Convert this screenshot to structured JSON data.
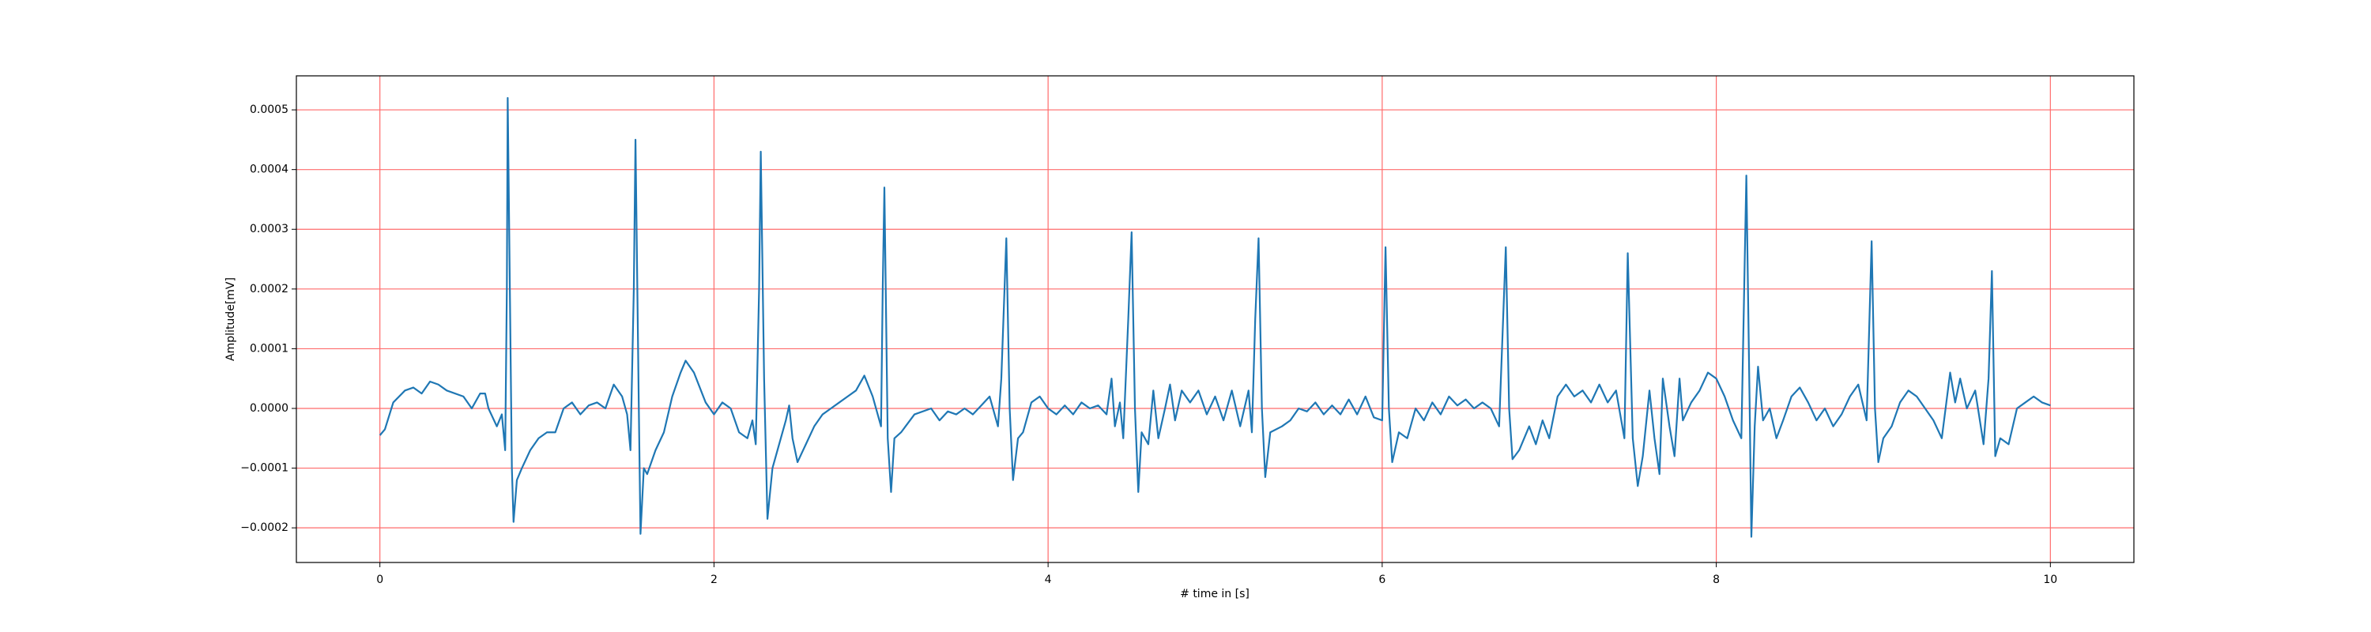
{
  "chart_data": {
    "type": "line",
    "xlabel": "# time in [s]",
    "ylabel": "Amplitude[mV]",
    "x": [
      0,
      0.03,
      0.08,
      0.15,
      0.2,
      0.25,
      0.3,
      0.35,
      0.4,
      0.5,
      0.55,
      0.6,
      0.63,
      0.65,
      0.7,
      0.73,
      0.75,
      0.76,
      0.765,
      0.78,
      0.79,
      0.8,
      0.82,
      0.85,
      0.9,
      0.95,
      1.0,
      1.05,
      1.1,
      1.15,
      1.2,
      1.25,
      1.3,
      1.35,
      1.4,
      1.45,
      1.48,
      1.5,
      1.52,
      1.53,
      1.55,
      1.56,
      1.58,
      1.6,
      1.65,
      1.7,
      1.75,
      1.8,
      1.83,
      1.88,
      1.95,
      2.0,
      2.05,
      2.1,
      2.15,
      2.2,
      2.23,
      2.25,
      2.27,
      2.28,
      2.3,
      2.32,
      2.35,
      2.4,
      2.43,
      2.45,
      2.47,
      2.5,
      2.55,
      2.6,
      2.65,
      2.7,
      2.75,
      2.8,
      2.85,
      2.9,
      2.95,
      3.0,
      3.01,
      3.02,
      3.04,
      3.06,
      3.08,
      3.12,
      3.2,
      3.3,
      3.35,
      3.4,
      3.45,
      3.5,
      3.55,
      3.6,
      3.65,
      3.7,
      3.72,
      3.75,
      3.77,
      3.79,
      3.82,
      3.85,
      3.9,
      3.95,
      4.0,
      4.05,
      4.1,
      4.15,
      4.2,
      4.25,
      4.3,
      4.35,
      4.38,
      4.4,
      4.43,
      4.45,
      4.48,
      4.5,
      4.52,
      4.54,
      4.56,
      4.6,
      4.63,
      4.66,
      4.7,
      4.73,
      4.76,
      4.8,
      4.85,
      4.9,
      4.95,
      5.0,
      5.05,
      5.1,
      5.15,
      5.2,
      5.22,
      5.24,
      5.26,
      5.28,
      5.3,
      5.33,
      5.4,
      5.45,
      5.5,
      5.55,
      5.6,
      5.65,
      5.7,
      5.75,
      5.8,
      5.85,
      5.9,
      5.95,
      6.0,
      6.02,
      6.04,
      6.06,
      6.1,
      6.15,
      6.2,
      6.25,
      6.3,
      6.35,
      6.4,
      6.45,
      6.5,
      6.55,
      6.6,
      6.65,
      6.7,
      6.74,
      6.76,
      6.78,
      6.82,
      6.88,
      6.92,
      6.96,
      7.0,
      7.05,
      7.1,
      7.15,
      7.2,
      7.25,
      7.3,
      7.35,
      7.4,
      7.45,
      7.47,
      7.5,
      7.53,
      7.56,
      7.6,
      7.63,
      7.66,
      7.68,
      7.72,
      7.75,
      7.78,
      7.8,
      7.85,
      7.9,
      7.95,
      8.0,
      8.05,
      8.1,
      8.15,
      8.18,
      8.2,
      8.21,
      8.23,
      8.25,
      8.28,
      8.32,
      8.36,
      8.4,
      8.45,
      8.5,
      8.55,
      8.6,
      8.65,
      8.7,
      8.75,
      8.8,
      8.85,
      8.9,
      8.93,
      8.95,
      8.97,
      9.0,
      9.05,
      9.1,
      9.15,
      9.2,
      9.25,
      9.3,
      9.35,
      9.4,
      9.43,
      9.46,
      9.5,
      9.55,
      9.6,
      9.63,
      9.65,
      9.67,
      9.7,
      9.75,
      9.8,
      9.85,
      9.9,
      9.95,
      10.0
    ],
    "series": [
      {
        "color": "#1f77b4",
        "values": [
          -4.5e-05,
          -3.5e-05,
          1e-05,
          3e-05,
          3.5e-05,
          2.5e-05,
          4.5e-05,
          4e-05,
          3e-05,
          2e-05,
          0,
          2.5e-05,
          2.5e-05,
          0,
          -3e-05,
          -1e-05,
          -7e-05,
          0.0002,
          0.00052,
          0.00015,
          -0.0001,
          -0.00019,
          -0.00012,
          -0.0001,
          -7e-05,
          -5e-05,
          -4e-05,
          -4e-05,
          0,
          1e-05,
          -1e-05,
          5e-06,
          1e-05,
          0,
          4e-05,
          2e-05,
          -1e-05,
          -7e-05,
          0.0002,
          0.00045,
          0,
          -0.00021,
          -0.0001,
          -0.00011,
          -7e-05,
          -4e-05,
          2e-05,
          6e-05,
          8e-05,
          6e-05,
          1e-05,
          -1e-05,
          1e-05,
          0,
          -4e-05,
          -5e-05,
          -2e-05,
          -6e-05,
          0.0002,
          0.00043,
          5e-05,
          -0.000185,
          -0.0001,
          -5e-05,
          -2e-05,
          5e-06,
          -5e-05,
          -9e-05,
          -6e-05,
          -3e-05,
          -1e-05,
          0,
          1e-05,
          2e-05,
          3e-05,
          5.5e-05,
          2e-05,
          -3e-05,
          0.0002,
          0.00037,
          -5e-05,
          -0.00014,
          -5e-05,
          -4e-05,
          -1e-05,
          0,
          -2e-05,
          -5e-06,
          -1e-05,
          0,
          -1e-05,
          5e-06,
          2e-05,
          -3e-05,
          5e-05,
          0.000285,
          0,
          -0.00012,
          -5e-05,
          -4e-05,
          1e-05,
          2e-05,
          0,
          -1e-05,
          5e-06,
          -1e-05,
          1e-05,
          0,
          5e-06,
          -1e-05,
          5e-05,
          -3e-05,
          1e-05,
          -5e-05,
          0.00015,
          0.000295,
          0,
          -0.00014,
          -4e-05,
          -6e-05,
          3e-05,
          -5e-05,
          0,
          4e-05,
          -2e-05,
          3e-05,
          1e-05,
          3e-05,
          -1e-05,
          2e-05,
          -2e-05,
          3e-05,
          -3e-05,
          3e-05,
          -4e-05,
          0.00015,
          0.000285,
          0,
          -0.000115,
          -4e-05,
          -3e-05,
          -2e-05,
          0,
          -5e-06,
          1e-05,
          -1e-05,
          5e-06,
          -1e-05,
          1.5e-05,
          -1e-05,
          2e-05,
          -1.5e-05,
          -2e-05,
          0.00027,
          0,
          -9e-05,
          -4e-05,
          -5e-05,
          0,
          -2e-05,
          1e-05,
          -1e-05,
          2e-05,
          5e-06,
          1.5e-05,
          0,
          1e-05,
          0,
          -3e-05,
          0.00027,
          0,
          -8.5e-05,
          -7e-05,
          -3e-05,
          -6e-05,
          -2e-05,
          -5e-05,
          2e-05,
          4e-05,
          2e-05,
          3e-05,
          1e-05,
          4e-05,
          1e-05,
          3e-05,
          -5e-05,
          0.00026,
          -5e-05,
          -0.00013,
          -8e-05,
          3e-05,
          -5e-05,
          -0.00011,
          5e-05,
          -3e-05,
          -8e-05,
          5e-05,
          -2e-05,
          1e-05,
          3e-05,
          6e-05,
          5e-05,
          2e-05,
          -2e-05,
          -5e-05,
          0.00039,
          0,
          -0.000215,
          -3e-05,
          7e-05,
          -2e-05,
          0,
          -5e-05,
          -2e-05,
          2e-05,
          3.5e-05,
          1e-05,
          -2e-05,
          0,
          -3e-05,
          -1e-05,
          2e-05,
          4e-05,
          -2e-05,
          0.00028,
          0,
          -9e-05,
          -5e-05,
          -3e-05,
          1e-05,
          3e-05,
          2e-05,
          0,
          -2e-05,
          -5e-05,
          6e-05,
          1e-05,
          5e-05,
          0,
          3e-05,
          -6e-05,
          5e-05,
          0.00023,
          -8e-05,
          -5e-05,
          -6e-05,
          0,
          1e-05,
          2e-05,
          1e-05,
          5e-06
        ]
      }
    ],
    "xlim": [
      -0.5,
      10.5
    ],
    "ylim": [
      -0.000258,
      0.000557
    ],
    "xticks": [
      0,
      2,
      4,
      6,
      8,
      10
    ],
    "yticks": [
      {
        "value": -0.0002,
        "label": "−0.0002"
      },
      {
        "value": -0.0001,
        "label": "−0.0001"
      },
      {
        "value": 0,
        "label": "0.0000"
      },
      {
        "value": 0.0001,
        "label": "0.0001"
      },
      {
        "value": 0.0002,
        "label": "0.0002"
      },
      {
        "value": 0.0003,
        "label": "0.0003"
      },
      {
        "value": 0.0004,
        "label": "0.0004"
      },
      {
        "value": 0.0005,
        "label": "0.0005"
      }
    ],
    "grid": true,
    "grid_color": "#ff6b6b"
  }
}
